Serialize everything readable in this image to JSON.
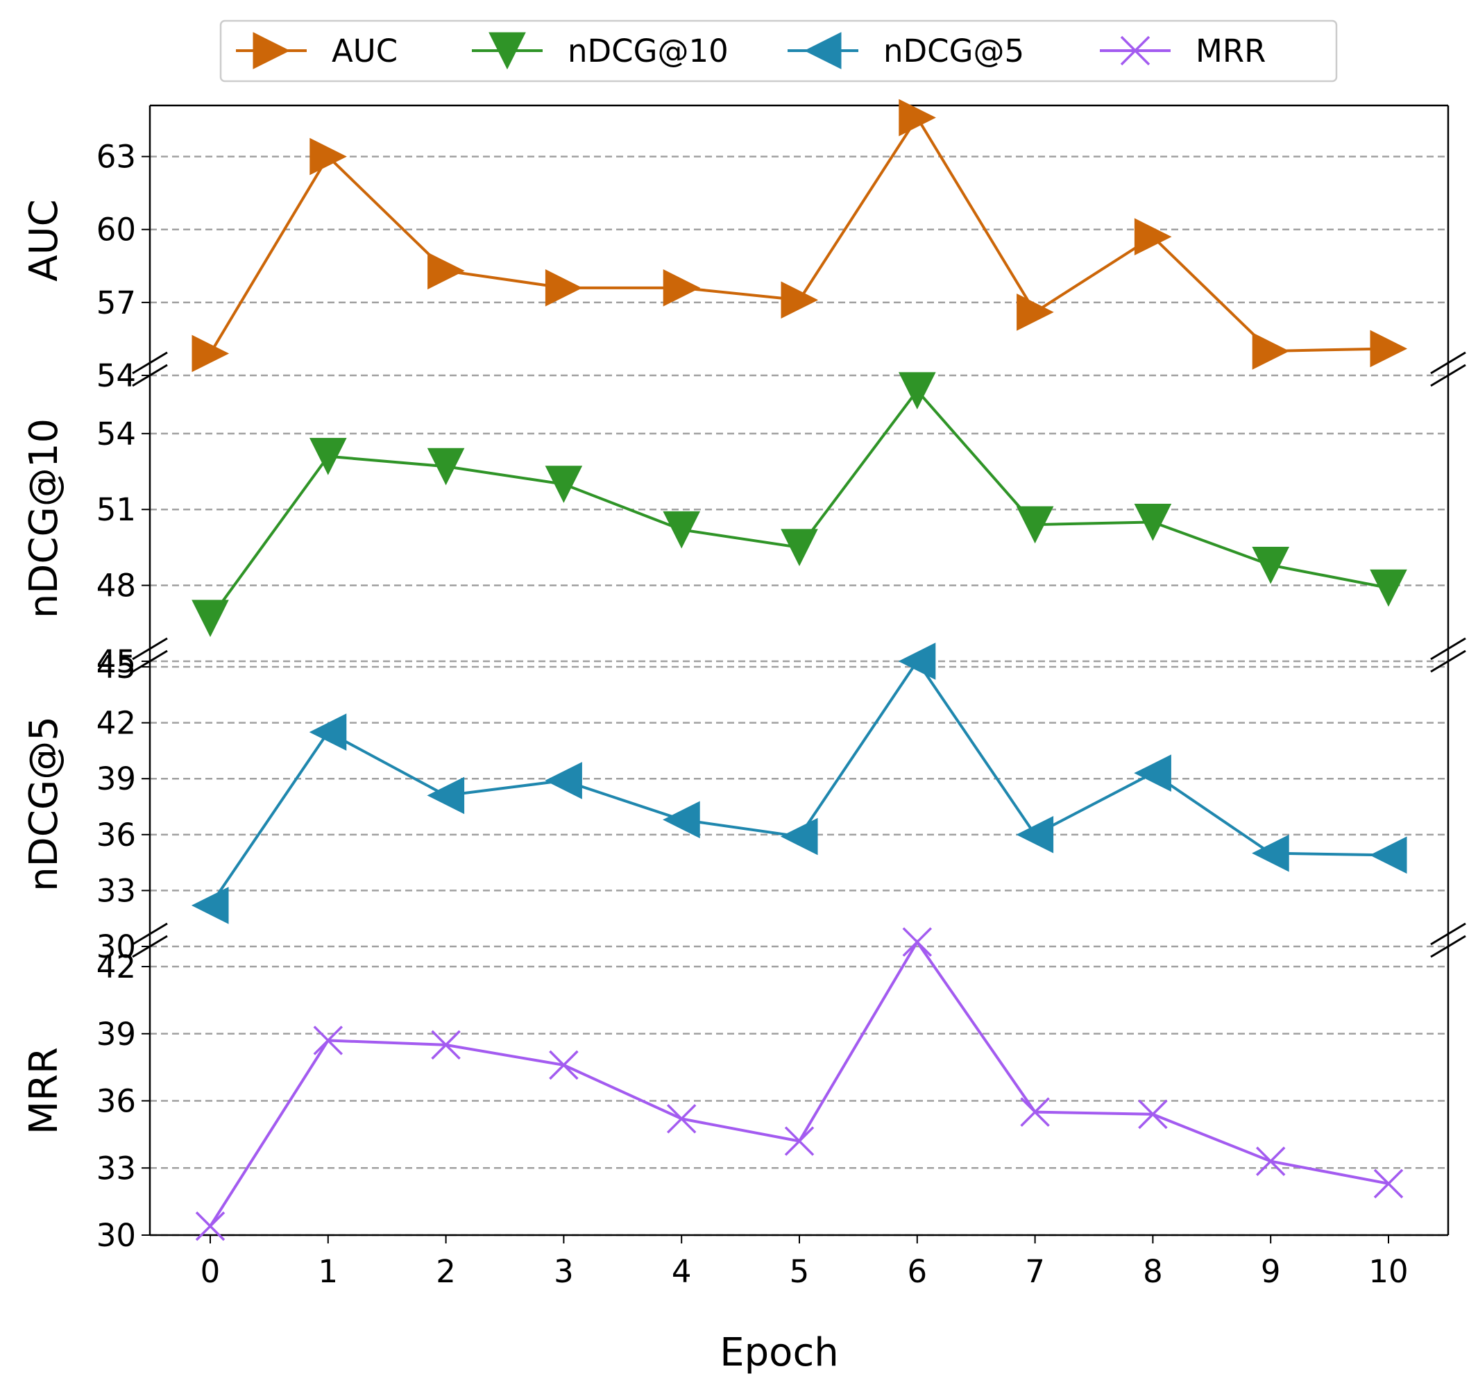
{
  "chart_data": {
    "type": "line",
    "x": [
      0,
      1,
      2,
      3,
      4,
      5,
      6,
      7,
      8,
      9,
      10
    ],
    "xticks": [
      "0",
      "1",
      "2",
      "3",
      "4",
      "5",
      "6",
      "7",
      "8",
      "9",
      "10"
    ],
    "xlabel": "Epoch",
    "legend": {
      "placement": "top-center"
    },
    "grid": {
      "y": true,
      "style": "dashed"
    },
    "panels": [
      {
        "ylabel": "AUC",
        "ylim": [
          54,
          65.1
        ],
        "yticks": [
          "54",
          "57",
          "60",
          "63"
        ],
        "ytick_values": [
          54,
          57,
          60,
          63
        ],
        "series": {
          "name": "AUC",
          "color": "#cc6608",
          "marker": "triangle-right",
          "values": [
            54.9,
            63.0,
            58.3,
            57.6,
            57.6,
            57.1,
            64.6,
            56.6,
            59.7,
            55.0,
            55.1
          ]
        }
      },
      {
        "ylabel": "nDCG@10",
        "ylim": [
          45,
          56.3
        ],
        "yticks": [
          "45",
          "48",
          "51",
          "54"
        ],
        "ytick_values": [
          45,
          48,
          51,
          54
        ],
        "series": {
          "name": "nDCG@10",
          "color": "#2f9427",
          "marker": "triangle-down",
          "values": [
            46.7,
            53.1,
            52.7,
            52.0,
            50.2,
            49.5,
            55.7,
            50.4,
            50.5,
            48.8,
            47.9
          ]
        }
      },
      {
        "ylabel": "nDCG@5",
        "ylim": [
          30,
          45.3
        ],
        "yticks": [
          "30",
          "33",
          "36",
          "39",
          "42",
          "45"
        ],
        "ytick_values": [
          30,
          33,
          36,
          39,
          42,
          45
        ],
        "series": {
          "name": "nDCG@5",
          "color": "#1f87ae",
          "marker": "triangle-left",
          "values": [
            32.2,
            41.5,
            38.1,
            38.9,
            36.8,
            35.9,
            45.3,
            36.0,
            39.3,
            35.0,
            34.9
          ]
        }
      },
      {
        "ylabel": "MRR",
        "ylim": [
          30,
          42.9
        ],
        "yticks": [
          "30",
          "33",
          "36",
          "39",
          "42"
        ],
        "ytick_values": [
          30,
          33,
          36,
          39,
          42
        ],
        "series": {
          "name": "MRR",
          "color": "#a35bf0",
          "marker": "x",
          "values": [
            30.4,
            38.7,
            38.5,
            37.6,
            35.2,
            34.2,
            43.1,
            35.5,
            35.4,
            33.3,
            32.3
          ]
        }
      }
    ]
  }
}
